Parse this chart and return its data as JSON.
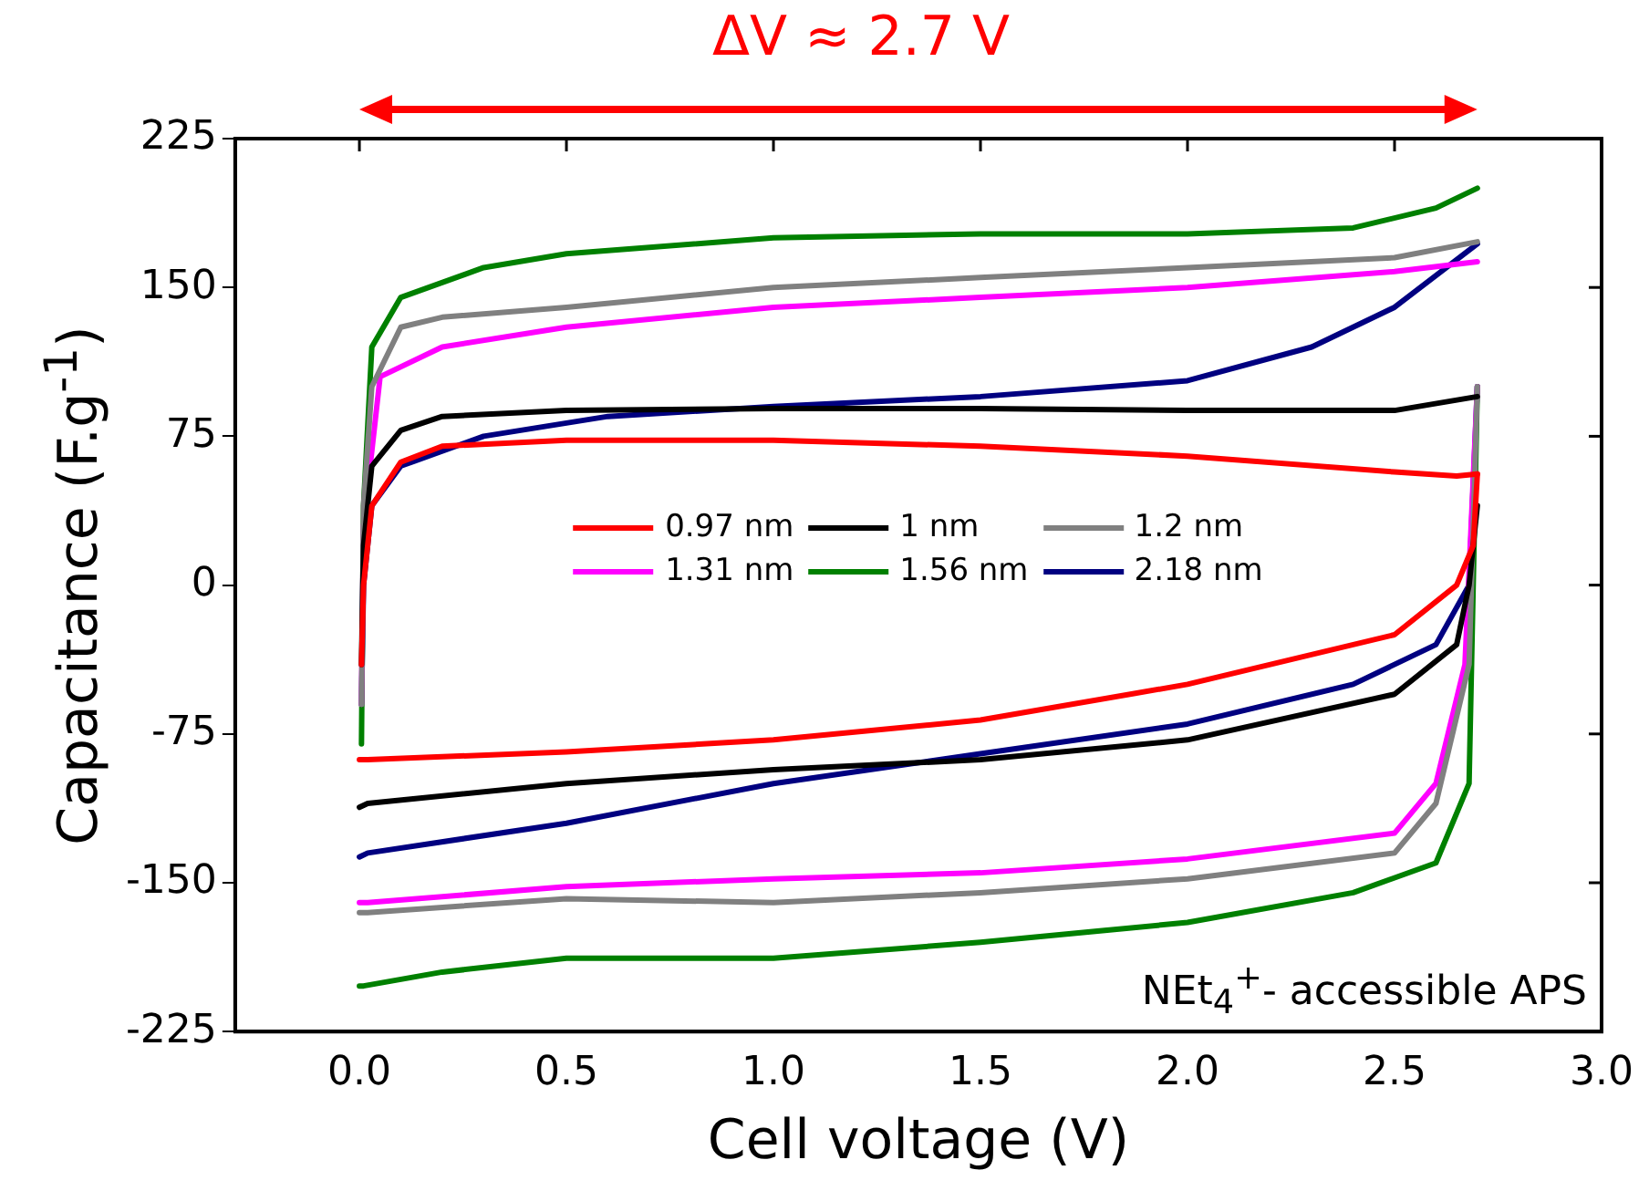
{
  "chart_data": {
    "type": "line",
    "title": "ΔV ≈ 2.7 V",
    "xlabel": "Cell voltage (V)",
    "ylabel": "Capacitance (F.g$^{-1}$)",
    "xlim": [
      -0.3,
      3.0
    ],
    "xticks": [
      {
        "value": 0,
        "label": "0.0"
      },
      0.5,
      {
        "value": 1,
        "label": "1.0"
      },
      1.5,
      {
        "value": 2,
        "label": "2.0"
      },
      2.5,
      {
        "value": 3,
        "label": "3.0"
      }
    ],
    "ylim": [
      -225,
      225
    ],
    "yticks": [
      -225,
      -150,
      -75,
      0,
      75,
      150,
      225
    ],
    "grid": false,
    "legend": "center",
    "marker": "none",
    "line_style": "solid",
    "annotations": [
      "NEt$_{4}$$^{+}$- accessible APS"
    ],
    "series": [
      {
        "name": "0.97 nm",
        "color": "#ff0000",
        "x": [
          0.005,
          0.01,
          0.03,
          0.1,
          0.2,
          0.5,
          1.0,
          1.5,
          2.0,
          2.5,
          2.65,
          2.7
        ],
        "values": [
          -40,
          0,
          40,
          62,
          70,
          73,
          73,
          70,
          65,
          57,
          55,
          56
        ]
      },
      {
        "name": "1 nm",
        "color": "#000000",
        "x": [
          0.005,
          0.01,
          0.03,
          0.1,
          0.2,
          0.5,
          1.0,
          1.5,
          2.0,
          2.5,
          2.7
        ],
        "values": [
          -40,
          20,
          60,
          78,
          85,
          88,
          89,
          89,
          88,
          88,
          95
        ]
      },
      {
        "name": "1.2  nm",
        "color": "#808080",
        "x": [
          0.005,
          0.01,
          0.03,
          0.1,
          0.2,
          0.5,
          1.0,
          1.5,
          2.0,
          2.5,
          2.7
        ],
        "values": [
          -60,
          40,
          100,
          130,
          135,
          140,
          150,
          155,
          160,
          165,
          173
        ]
      },
      {
        "name": "1.31 nm",
        "color": "#ff00ff",
        "x": [
          0.005,
          0.01,
          0.05,
          0.2,
          0.5,
          1.0,
          1.5,
          2.0,
          2.5,
          2.7
        ],
        "values": [
          -60,
          30,
          105,
          120,
          130,
          140,
          145,
          150,
          158,
          163
        ]
      },
      {
        "name": "1.56 nm",
        "color": "#008000",
        "x": [
          0.005,
          0.01,
          0.03,
          0.1,
          0.3,
          0.5,
          1.0,
          1.5,
          2.0,
          2.4,
          2.6,
          2.7
        ],
        "values": [
          -80,
          40,
          120,
          145,
          160,
          167,
          175,
          177,
          177,
          180,
          190,
          200
        ]
      },
      {
        "name": "2.18 nm",
        "color": "#000080",
        "x": [
          0.005,
          0.01,
          0.03,
          0.1,
          0.3,
          0.6,
          1.0,
          1.5,
          2.0,
          2.3,
          2.5,
          2.7
        ],
        "values": [
          -60,
          0,
          40,
          60,
          75,
          85,
          90,
          95,
          103,
          120,
          140,
          172
        ]
      },
      {
        "color": "#ff0000",
        "x": [
          0,
          0.02,
          0.5,
          1.0,
          1.5,
          2.0,
          2.5,
          2.65,
          2.69,
          2.7
        ],
        "values": [
          -88,
          -88,
          -84,
          -78,
          -68,
          -50,
          -25,
          0,
          20,
          56
        ]
      },
      {
        "color": "#000000",
        "x": [
          0,
          0.02,
          0.5,
          1.0,
          1.5,
          2.0,
          2.5,
          2.65,
          2.68,
          2.7
        ],
        "values": [
          -112,
          -110,
          -100,
          -93,
          -88,
          -78,
          -55,
          -30,
          0,
          40
        ]
      },
      {
        "color": "#808080",
        "x": [
          0,
          0.02,
          0.5,
          1.0,
          1.5,
          2.0,
          2.5,
          2.6,
          2.68,
          2.7
        ],
        "values": [
          -165,
          -165,
          -158,
          -160,
          -155,
          -148,
          -135,
          -110,
          -40,
          100
        ]
      },
      {
        "color": "#ff00ff",
        "x": [
          0,
          0.02,
          0.5,
          1.0,
          1.5,
          2.0,
          2.5,
          2.6,
          2.67,
          2.7
        ],
        "values": [
          -160,
          -160,
          -152,
          -148,
          -145,
          -138,
          -125,
          -100,
          -40,
          100
        ]
      },
      {
        "color": "#008000",
        "x": [
          0,
          0.01,
          0.2,
          0.5,
          1.0,
          1.5,
          2.0,
          2.4,
          2.6,
          2.68,
          2.7
        ],
        "values": [
          -202,
          -202,
          -195,
          -188,
          -188,
          -180,
          -170,
          -155,
          -140,
          -100,
          100
        ]
      },
      {
        "color": "#000080",
        "x": [
          0,
          0.02,
          0.5,
          1.0,
          1.5,
          2.0,
          2.4,
          2.6,
          2.68,
          2.7
        ],
        "values": [
          -137,
          -135,
          -120,
          -100,
          -85,
          -70,
          -50,
          -30,
          0,
          100
        ]
      }
    ]
  }
}
